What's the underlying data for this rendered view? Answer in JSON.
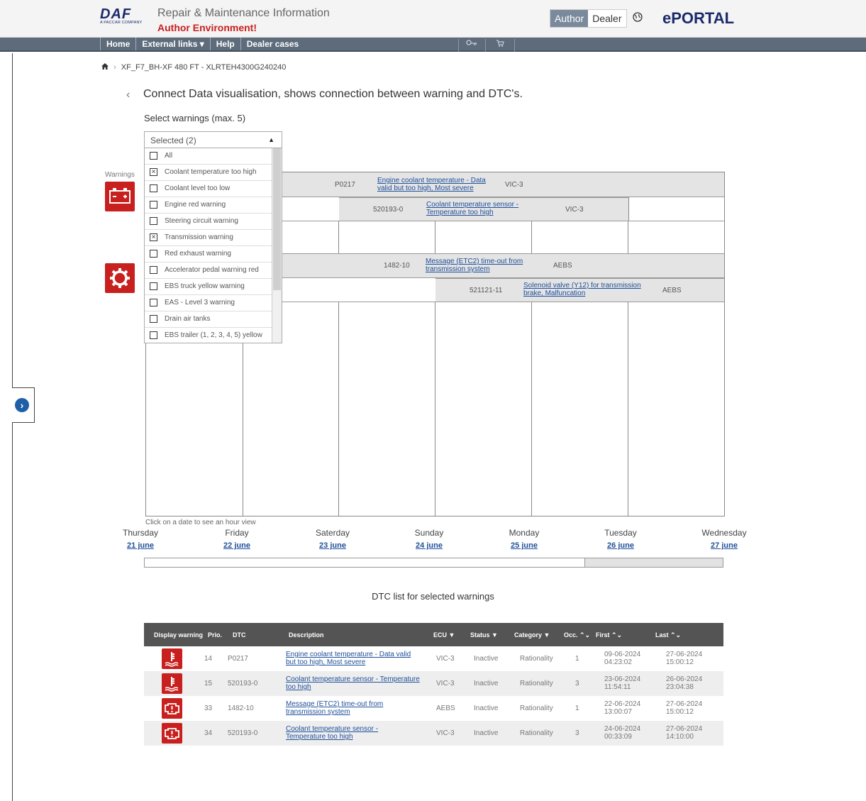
{
  "header": {
    "logo_text": "DAF",
    "logo_sub": "A PACCAR COMPANY",
    "app_title": "Repair & Maintenance Information",
    "environment": "Author Environment!",
    "role_author": "Author",
    "role_dealer": "Dealer",
    "portal": "ePORTAL"
  },
  "nav": {
    "items": [
      "Home",
      "External links ▾",
      "Help",
      "Dealer cases"
    ],
    "icons": [
      "key-icon",
      "cart-icon"
    ]
  },
  "breadcrumb": {
    "vehicle": "XF_F7_BH-XF 480 FT - XLRTEH4300G240240"
  },
  "page": {
    "title": "Connect Data visualisation, shows connection between warning and DTC's.",
    "select_label": "Select warnings (max. 5)",
    "warnings_label": "Warnings",
    "click_hint": "Click on a date to see an hour view"
  },
  "dropdown": {
    "value": "Selected (2)",
    "options": [
      {
        "label": "All",
        "checked": false
      },
      {
        "label": "Coolant temperature too high",
        "checked": true
      },
      {
        "label": "Coolant level too low",
        "checked": false
      },
      {
        "label": "Engine red warning",
        "checked": false
      },
      {
        "label": "Steering circuit warning",
        "checked": false
      },
      {
        "label": "Transmission warning",
        "checked": true
      },
      {
        "label": "Red exhaust warning",
        "checked": false
      },
      {
        "label": "Accelerator pedal warning red",
        "checked": false
      },
      {
        "label": "EBS truck yellow warning",
        "checked": false
      },
      {
        "label": "EAS - Level 3 warning",
        "checked": false
      },
      {
        "label": "Drain air tanks",
        "checked": false
      },
      {
        "label": "EBS trailer (1, 2, 3, 4, 5) yellow",
        "checked": false
      }
    ]
  },
  "timeline": {
    "bars": [
      {
        "code": "P0217",
        "desc": "Engine coolant temperature - Data valid but too high, Most severe",
        "ecu": "VIC-3"
      },
      {
        "code": "520193-0",
        "desc": "Coolant temperature sensor - Temperature too high",
        "ecu": "VIC-3"
      },
      {
        "code": "1482-10",
        "desc": "Message (ETC2) time-out from transmission system",
        "ecu": "AEBS"
      },
      {
        "code": "521121-11",
        "desc": "Solenoid valve (Y12) for transmission brake, Malfuncation",
        "ecu": "AEBS"
      }
    ],
    "days": [
      {
        "name": "Thursday",
        "date": "21 june"
      },
      {
        "name": "Friday",
        "date": "22 june"
      },
      {
        "name": "Saterday",
        "date": "23 june"
      },
      {
        "name": "Sunday",
        "date": "24 june"
      },
      {
        "name": "Monday",
        "date": "25 june"
      },
      {
        "name": "Tuesday",
        "date": "26 june"
      },
      {
        "name": "Wednesday",
        "date": "27 june"
      }
    ]
  },
  "dtc": {
    "title": "DTC list for selected warnings",
    "headers": [
      "Display warning",
      "Prio.",
      "DTC",
      "Description",
      "ECU ▼",
      "Status ▼",
      "Category ▼",
      "Occ. ⌃⌄",
      "First ⌃⌄",
      "Last ⌃⌄"
    ],
    "rows": [
      {
        "icon": "coolant-temperature-icon",
        "prio": "14",
        "dtc": "P0217",
        "desc": "Engine coolant temperature - Data valid but too high, Most severe",
        "ecu": "VIC-3",
        "status": "Inactive",
        "category": "Rationality",
        "occ": "1",
        "first_date": "09-06-2024",
        "first_time": "04:23:02",
        "last_date": "27-06-2024",
        "last_time": "15:00:12"
      },
      {
        "icon": "coolant-temperature-icon",
        "prio": "15",
        "dtc": "520193-0",
        "desc": "Coolant temperature sensor - Temperature too high",
        "ecu": "VIC-3",
        "status": "Inactive",
        "category": "Rationality",
        "occ": "3",
        "first_date": "23-06-2024",
        "first_time": "11:54:11",
        "last_date": "26-06-2024",
        "last_time": "23:04:38"
      },
      {
        "icon": "transmission-warning-icon",
        "prio": "33",
        "dtc": "1482-10",
        "desc": "Message (ETC2) time-out from transmission system",
        "ecu": "AEBS",
        "status": "Inactive",
        "category": "Rationality",
        "occ": "1",
        "first_date": "22-06-2024",
        "first_time": "13:00:07",
        "last_date": "27-06-2024",
        "last_time": "15:00:12"
      },
      {
        "icon": "transmission-warning-icon",
        "prio": "34",
        "dtc": "520193-0",
        "desc": "Coolant temperature sensor - Temperature too high",
        "ecu": "VIC-3",
        "status": "Inactive",
        "category": "Rationality",
        "occ": "3",
        "first_date": "24-06-2024",
        "first_time": "00:33:09",
        "last_date": "27-06-2024",
        "last_time": "14:10:00"
      }
    ]
  },
  "colors": {
    "brand_red": "#c8201e",
    "nav_bg": "#5d6b7b",
    "link_blue": "#1f4f9a",
    "portal_blue": "#1b2a6b"
  }
}
